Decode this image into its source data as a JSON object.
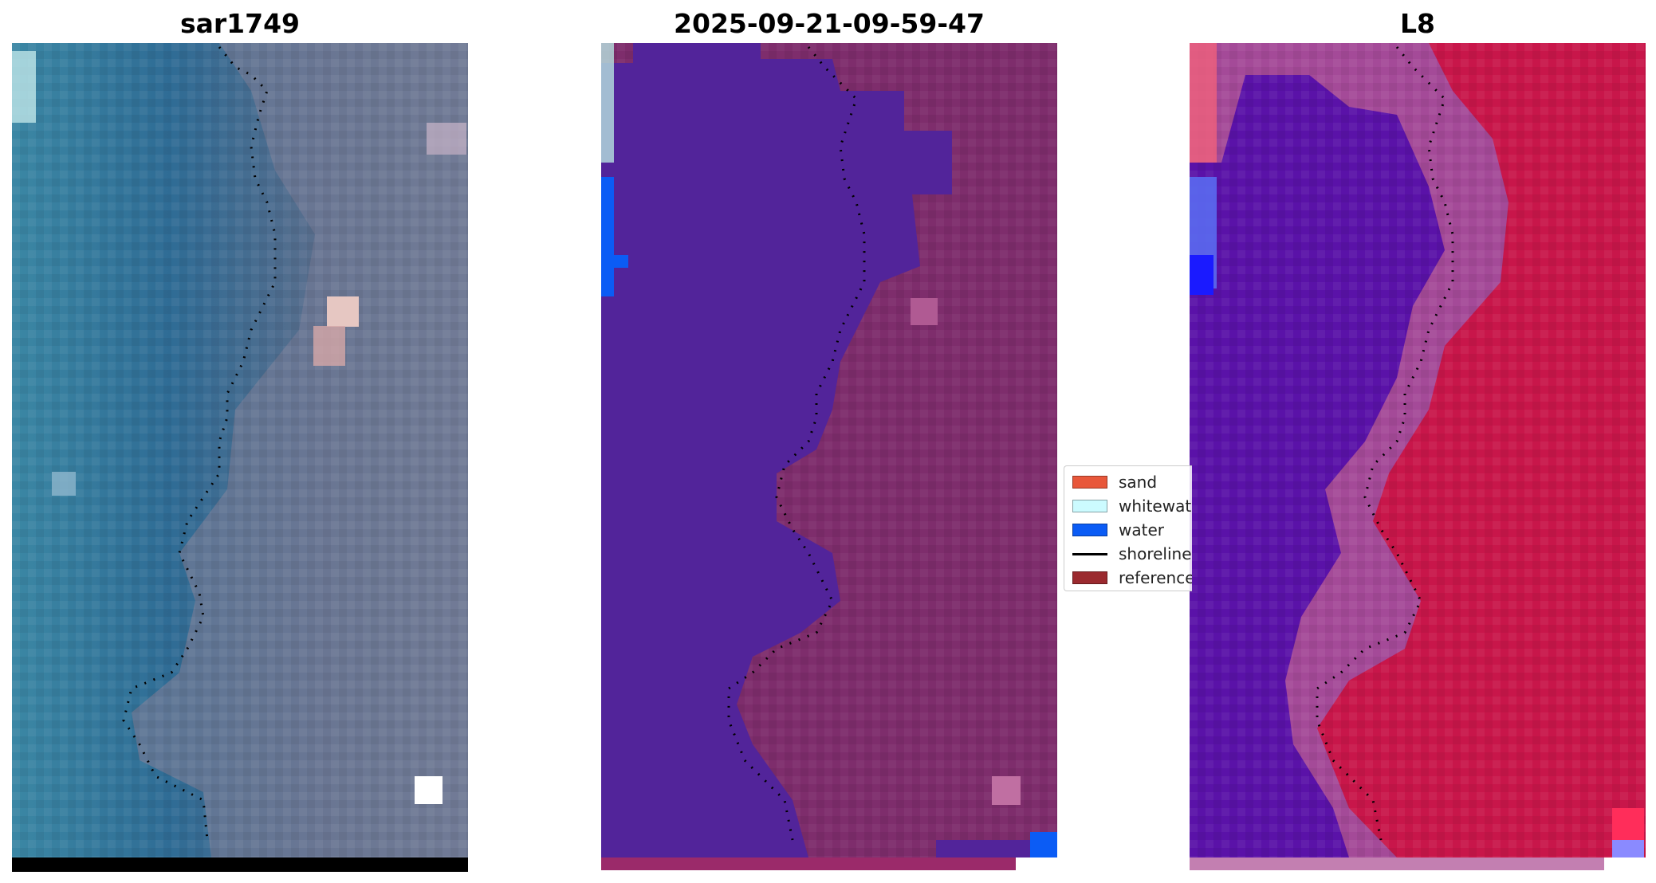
{
  "panels": [
    {
      "title": "sar1749"
    },
    {
      "title": "2025-09-21-09-59-47"
    },
    {
      "title": "L8"
    }
  ],
  "legend": {
    "items": [
      {
        "label": "sand",
        "color": "#e8573a"
      },
      {
        "label": "whitewater",
        "color": "#ccfbff"
      },
      {
        "label": "water",
        "color": "#0b5cf5"
      },
      {
        "label": "shoreline",
        "color": "#000000"
      },
      {
        "label": "reference",
        "color": "#9b2a2f"
      }
    ]
  },
  "colors": {
    "rgb_water": "#2f6f96",
    "rgb_land": "#5b6e8a",
    "class_water": "#52249a",
    "class_land": "#7e2d6c",
    "mndwi_water": "#5a12a8",
    "mndwi_land": "#c8164a"
  }
}
